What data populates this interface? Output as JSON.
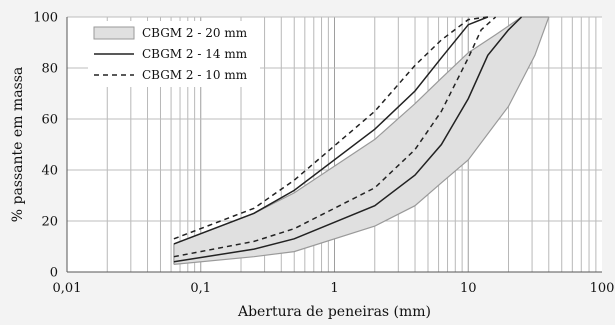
{
  "chart_data": {
    "type": "line",
    "xscale": "log",
    "xlim": [
      0.01,
      100
    ],
    "ylim": [
      0,
      100
    ],
    "xlabel": "Abertura de peneiras (mm)",
    "ylabel": "% passante em massa",
    "x_ticks": [
      0.01,
      0.1,
      1,
      10,
      100
    ],
    "x_tick_labels": [
      "0,01",
      "0,1",
      "1",
      "10",
      "100"
    ],
    "y_ticks": [
      0,
      20,
      40,
      60,
      80,
      100
    ],
    "y_tick_labels": [
      "0",
      "20",
      "40",
      "60",
      "80",
      "100"
    ],
    "grid": {
      "x_minor": true,
      "y_major": true
    },
    "legend_position": "top-left",
    "series": [
      {
        "name": "CBGM 2 - 20 mm",
        "style": "band",
        "fill": "#e0e0e0",
        "stroke": "#9a9a9a",
        "upper": {
          "x": [
            0.063,
            0.25,
            0.5,
            2,
            4,
            6.3,
            10,
            16,
            25,
            40
          ],
          "y": [
            11,
            23,
            31,
            52,
            66,
            76,
            86,
            93,
            100,
            100
          ]
        },
        "lower": {
          "x": [
            0.063,
            0.25,
            0.5,
            2,
            4,
            6.3,
            10,
            20,
            31.5,
            40
          ],
          "y": [
            3,
            6,
            8,
            18,
            26,
            35,
            44,
            65,
            85,
            100
          ]
        }
      },
      {
        "name": "CBGM 2 - 14 mm",
        "style": "solid",
        "color": "#222222",
        "curves": [
          {
            "x": [
              0.063,
              0.25,
              0.5,
              2,
              4,
              6.3,
              10,
              14
            ],
            "y": [
              11,
              23,
              32,
              56,
              71,
              84,
              97,
              100
            ]
          },
          {
            "x": [
              0.063,
              0.25,
              0.5,
              2,
              4,
              6.3,
              10,
              14,
              20,
              25
            ],
            "y": [
              4,
              9,
              13,
              26,
              38,
              50,
              68,
              85,
              95,
              100
            ]
          }
        ]
      },
      {
        "name": "CBGM 2 - 10 mm",
        "style": "dashed",
        "color": "#222222",
        "curves": [
          {
            "x": [
              0.063,
              0.25,
              0.5,
              2,
              4,
              6.3,
              10,
              14
            ],
            "y": [
              13,
              25,
              36,
              63,
              81,
              91,
              99,
              100
            ]
          },
          {
            "x": [
              0.063,
              0.25,
              0.5,
              2,
              4,
              6.3,
              10,
              12.5,
              16
            ],
            "y": [
              6,
              12,
              17,
              33,
              48,
              63,
              84,
              95,
              100
            ]
          }
        ]
      }
    ]
  }
}
